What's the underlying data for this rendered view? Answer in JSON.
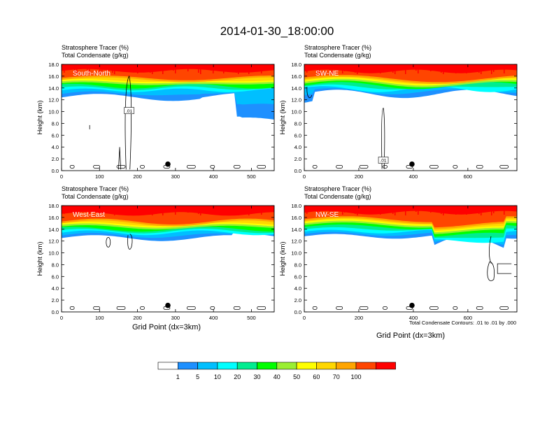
{
  "title": "2014-01-30_18:00:00",
  "var_labels": [
    "Stratosphere Tracer   (%)",
    "Total Condensate   (g/kg)"
  ],
  "y_axis_label": "Height (km)",
  "x_axis_label": "Grid Point (dx=3km)",
  "contour_note": "Total Condensate Contours: .01 to .01 by .000",
  "colorbar": {
    "colors": [
      "#ffffff",
      "#1e90ff",
      "#00bfff",
      "#00ffff",
      "#00ed90",
      "#00ff00",
      "#9aef32",
      "#ffff00",
      "#ffd700",
      "#ffa500",
      "#ff4500",
      "#ff0000"
    ],
    "labels": [
      "1",
      "5",
      "10",
      "20",
      "30",
      "40",
      "50",
      "60",
      "70",
      "100"
    ]
  },
  "chart_data": [
    {
      "type": "heatmap",
      "panel_label": "South-North",
      "x_ticks": [
        0,
        100,
        200,
        300,
        400,
        500
      ],
      "xlim": [
        0,
        560
      ],
      "y_ticks": [
        "0.0",
        "2.0",
        "4.0",
        "6.0",
        "8.0",
        "10.0",
        "12.0",
        "14.0",
        "16.0",
        "18.0"
      ],
      "ylim": [
        0,
        18
      ],
      "contour_label": ".01",
      "marker_x": 280,
      "marker_y": 1.1
    },
    {
      "type": "heatmap",
      "panel_label": "SW-NE",
      "x_ticks": [
        0,
        200,
        400,
        600
      ],
      "xlim": [
        0,
        780
      ],
      "y_ticks": [
        "0.0",
        "2.0",
        "4.0",
        "6.0",
        "8.0",
        "10.0",
        "12.0",
        "14.0",
        "16.0",
        "18.0"
      ],
      "ylim": [
        0,
        18
      ],
      "contour_label": ".01",
      "marker_x": 395,
      "marker_y": 1.1
    },
    {
      "type": "heatmap",
      "panel_label": "West-East",
      "x_ticks": [
        0,
        100,
        200,
        300,
        400,
        500
      ],
      "xlim": [
        0,
        560
      ],
      "y_ticks": [
        "0.0",
        "2.0",
        "4.0",
        "6.0",
        "8.0",
        "10.0",
        "12.0",
        "14.0",
        "16.0",
        "18.0"
      ],
      "ylim": [
        0,
        18
      ],
      "contour_label": "",
      "marker_x": 280,
      "marker_y": 1.1
    },
    {
      "type": "heatmap",
      "panel_label": "NW-SE",
      "x_ticks": [
        0,
        200,
        400,
        600
      ],
      "xlim": [
        0,
        780
      ],
      "y_ticks": [
        "0.0",
        "2.0",
        "4.0",
        "6.0",
        "8.0",
        "10.0",
        "12.0",
        "14.0",
        "16.0",
        "18.0"
      ],
      "ylim": [
        0,
        18
      ],
      "contour_label": "",
      "marker_x": 395,
      "marker_y": 1.1
    }
  ]
}
